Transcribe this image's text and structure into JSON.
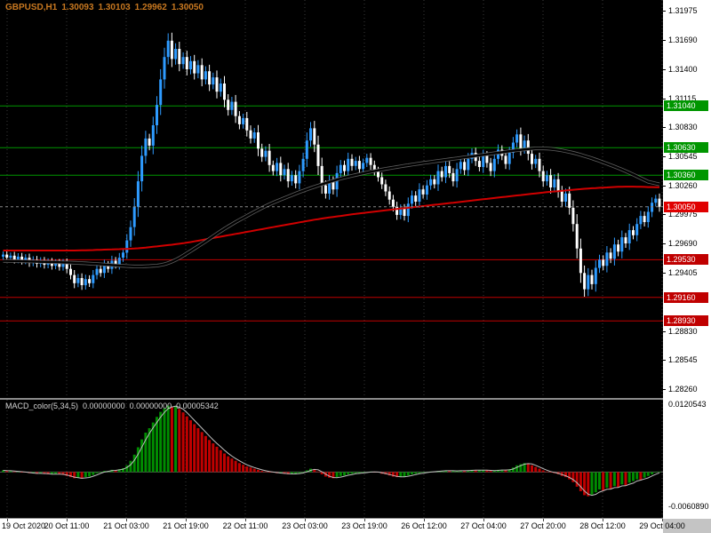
{
  "header": {
    "symbol_period": "GBPUSD,H1",
    "open": "1.30093",
    "high": "1.30103",
    "low": "1.29962",
    "close": "1.30050"
  },
  "macd_header": {
    "name": "MACD_color(5,34,5)",
    "values": [
      "0.00000000",
      "0.00000000",
      "0.00005342"
    ]
  },
  "time_axis": {
    "labels": [
      "19 Oct 2020",
      "20 Oct 11:00",
      "21 Oct 03:00",
      "21 Oct 19:00",
      "22 Oct 11:00",
      "23 Oct 03:00",
      "23 Oct 19:00",
      "26 Oct 12:00",
      "27 Oct 04:00",
      "27 Oct 20:00",
      "28 Oct 12:00",
      "29 Oct 04:00"
    ]
  },
  "price_axis": {
    "ticks": [
      "1.31975",
      "1.31690",
      "1.31400",
      "1.31115",
      "1.30830",
      "1.30545",
      "1.30260",
      "1.29975",
      "1.29690",
      "1.29405",
      "1.28830",
      "1.28545",
      "1.28260"
    ]
  },
  "macd_axis": {
    "top_label": "0.0120543",
    "bottom_label": "-0.0060890",
    "max": 0.0120543,
    "min": -0.006089
  },
  "levels": {
    "resistance": [
      {
        "price": 1.3104,
        "label": "1.31040"
      },
      {
        "price": 1.3063,
        "label": "1.30630"
      },
      {
        "price": 1.3036,
        "label": "1.30360"
      }
    ],
    "support": [
      {
        "price": 1.2953,
        "label": "1.29530"
      },
      {
        "price": 1.2916,
        "label": "1.29160"
      },
      {
        "price": 1.2893,
        "label": "1.28930"
      }
    ],
    "current": {
      "price": 1.3005,
      "label": "1.30050"
    }
  },
  "colors": {
    "panel_bg": "#000000",
    "axis_bg": "#ffffff",
    "axis_text": "#000000",
    "grid": "#3a3a3a",
    "bull": "#2e9bff",
    "bear": "#ffffff",
    "ma_dark": "#000000",
    "ma_dark_halo": "#6e6e6e",
    "ma_red": "#d10000",
    "resistance": "#009600",
    "support": "#c00000",
    "current_price": "#e00000",
    "current_price_line": "#888888",
    "macd_up": "#008c00",
    "macd_down": "#c00000",
    "macd_signal": "#bebebe",
    "macd_zero": "#5a5a5a",
    "header_text": "#c87820",
    "macd_header_text": "#d4d4d4",
    "corner_bg": "#c4c4c4"
  },
  "chart_data": [
    {
      "type": "candlestick",
      "title": "GBPUSD,H1",
      "x_labels": [
        "19 Oct 2020",
        "20 Oct 11:00",
        "21 Oct 03:00",
        "21 Oct 19:00",
        "22 Oct 11:00",
        "23 Oct 03:00",
        "23 Oct 19:00",
        "26 Oct 12:00",
        "27 Oct 04:00",
        "27 Oct 20:00",
        "28 Oct 12:00",
        "29 Oct 04:00"
      ],
      "price_range": {
        "min": 1.2826,
        "max": 1.31975
      },
      "closes": [
        1.2958,
        1.2955,
        1.2957,
        1.2953,
        1.2956,
        1.2952,
        1.2955,
        1.295,
        1.2953,
        1.2949,
        1.2952,
        1.2948,
        1.2951,
        1.2947,
        1.295,
        1.2946,
        1.295,
        1.2944,
        1.2938,
        1.293,
        1.2935,
        1.2928,
        1.2934,
        1.293,
        1.2938,
        1.2944,
        1.294,
        1.2948,
        1.2944,
        1.2952,
        1.2948,
        1.2955,
        1.296,
        1.2972,
        1.2985,
        1.3005,
        1.303,
        1.3055,
        1.3072,
        1.3065,
        1.3085,
        1.3105,
        1.313,
        1.3152,
        1.3168,
        1.315,
        1.316,
        1.3145,
        1.3152,
        1.314,
        1.3148,
        1.3136,
        1.3144,
        1.313,
        1.3138,
        1.3125,
        1.3132,
        1.3118,
        1.3126,
        1.311,
        1.31,
        1.3108,
        1.3094,
        1.3086,
        1.3092,
        1.308,
        1.3072,
        1.3078,
        1.3062,
        1.3054,
        1.306,
        1.3046,
        1.304,
        1.3048,
        1.3036,
        1.3042,
        1.303,
        1.3036,
        1.3028,
        1.304,
        1.3052,
        1.307,
        1.3082,
        1.3066,
        1.3045,
        1.3026,
        1.3018,
        1.303,
        1.3022,
        1.3038,
        1.3046,
        1.304,
        1.3052,
        1.3045,
        1.305,
        1.3042,
        1.3048,
        1.3053,
        1.3046,
        1.304,
        1.3034,
        1.3027,
        1.302,
        1.3012,
        1.3005,
        1.2997,
        1.3003,
        1.2996,
        1.3008,
        1.3016,
        1.301,
        1.3022,
        1.3017,
        1.3026,
        1.3032,
        1.3027,
        1.304,
        1.3034,
        1.3045,
        1.3038,
        1.303,
        1.3042,
        1.3049,
        1.3041,
        1.3052,
        1.3058,
        1.305,
        1.3044,
        1.3055,
        1.3048,
        1.304,
        1.3052,
        1.3061,
        1.3055,
        1.3047,
        1.3058,
        1.3068,
        1.3076,
        1.3062,
        1.307,
        1.3057,
        1.3047,
        1.3052,
        1.304,
        1.303,
        1.3036,
        1.3024,
        1.3032,
        1.302,
        1.301,
        1.3018,
        1.3004,
        1.2988,
        1.2964,
        1.294,
        1.2924,
        1.2938,
        1.2929,
        1.2945,
        1.2953,
        1.2947,
        1.296,
        1.2954,
        1.2968,
        1.2961,
        1.2975,
        1.2969,
        1.2982,
        1.2977,
        1.2988,
        1.2996,
        1.299,
        1.3,
        1.3009,
        1.3013,
        1.3005
      ],
      "overlays": [
        {
          "name": "moving-average-dark",
          "anchors": [
            [
              0,
              1.2952
            ],
            [
              20,
              1.295
            ],
            [
              36,
              1.2946
            ],
            [
              44,
              1.2948
            ],
            [
              52,
              1.2966
            ],
            [
              60,
              1.2986
            ],
            [
              70,
              1.3006
            ],
            [
              80,
              1.3021
            ],
            [
              90,
              1.3033
            ],
            [
              100,
              1.3041
            ],
            [
              110,
              1.3047
            ],
            [
              120,
              1.3052
            ],
            [
              130,
              1.3057
            ],
            [
              138,
              1.3061
            ],
            [
              144,
              1.3063
            ],
            [
              150,
              1.306
            ],
            [
              156,
              1.3054
            ],
            [
              162,
              1.3046
            ],
            [
              168,
              1.3037
            ],
            [
              172,
              1.3029
            ],
            [
              175,
              1.3025
            ]
          ]
        },
        {
          "name": "moving-average-red",
          "anchors": [
            [
              0,
              1.2962
            ],
            [
              20,
              1.2962
            ],
            [
              36,
              1.2964
            ],
            [
              48,
              1.2969
            ],
            [
              60,
              1.2977
            ],
            [
              72,
              1.2985
            ],
            [
              84,
              1.2993
            ],
            [
              96,
              1.2999
            ],
            [
              108,
              1.3004
            ],
            [
              120,
              1.3009
            ],
            [
              132,
              1.3014
            ],
            [
              144,
              1.3019
            ],
            [
              156,
              1.3023
            ],
            [
              166,
              1.3025
            ],
            [
              175,
              1.3024
            ]
          ]
        }
      ]
    },
    {
      "type": "bar",
      "title": "MACD_color(5,34,5)",
      "ylim": [
        -0.006089,
        0.0120543
      ],
      "values": [
        0.0003,
        0.0002,
        0.0002,
        0.0001,
        0.0001,
        0.0,
        -0.0001,
        -0.0002,
        -0.0002,
        -0.0003,
        -0.0002,
        -0.0003,
        -0.0004,
        -0.0004,
        -0.0003,
        -0.0004,
        -0.0005,
        -0.0007,
        -0.0009,
        -0.0011,
        -0.001,
        -0.0012,
        -0.0009,
        -0.0008,
        -0.0005,
        -0.0002,
        0.0,
        0.0002,
        0.0002,
        0.0004,
        0.0003,
        0.0005,
        0.0007,
        0.0012,
        0.002,
        0.0031,
        0.0044,
        0.0058,
        0.007,
        0.0078,
        0.0088,
        0.0098,
        0.0107,
        0.0113,
        0.0118,
        0.0116,
        0.0117,
        0.0112,
        0.0106,
        0.0099,
        0.0092,
        0.0085,
        0.0078,
        0.0071,
        0.0064,
        0.0057,
        0.0051,
        0.0045,
        0.0039,
        0.0033,
        0.0028,
        0.0024,
        0.002,
        0.0016,
        0.0013,
        0.001,
        0.0008,
        0.0006,
        0.0004,
        0.0002,
        0.0001,
        0.0,
        -0.0001,
        -0.0002,
        -0.0002,
        -0.0003,
        -0.0004,
        -0.0003,
        -0.0003,
        -0.0002,
        0.0,
        0.0003,
        0.0006,
        0.0005,
        0.0001,
        -0.0004,
        -0.0008,
        -0.001,
        -0.0011,
        -0.0009,
        -0.0007,
        -0.0006,
        -0.0004,
        -0.0003,
        -0.0002,
        -0.0002,
        -0.0001,
        0.0,
        0.0001,
        0.0,
        -0.0001,
        -0.0003,
        -0.0004,
        -0.0006,
        -0.0008,
        -0.0009,
        -0.0008,
        -0.0008,
        -0.0006,
        -0.0004,
        -0.0003,
        -0.0002,
        -0.0001,
        0.0,
        0.0001,
        0.0001,
        0.0002,
        0.0002,
        0.0003,
        0.0002,
        0.0002,
        0.0002,
        0.0003,
        0.0002,
        0.0003,
        0.0004,
        0.0003,
        0.0003,
        0.0004,
        0.0003,
        0.0002,
        0.0003,
        0.0004,
        0.0004,
        0.0003,
        0.0005,
        0.0008,
        0.0012,
        0.0014,
        0.0016,
        0.0015,
        0.0012,
        0.0009,
        0.0006,
        0.0003,
        0.0001,
        -0.0001,
        -0.0002,
        -0.0004,
        -0.0007,
        -0.0009,
        -0.0013,
        -0.0018,
        -0.0026,
        -0.0034,
        -0.0041,
        -0.0043,
        -0.004,
        -0.0036,
        -0.0031,
        -0.0033,
        -0.0028,
        -0.003,
        -0.0025,
        -0.0027,
        -0.0022,
        -0.0024,
        -0.0019,
        -0.0016,
        -0.0013,
        -0.0014,
        -0.001,
        -0.0007,
        -0.0004,
        -0.0001,
        0.0001
      ]
    }
  ]
}
